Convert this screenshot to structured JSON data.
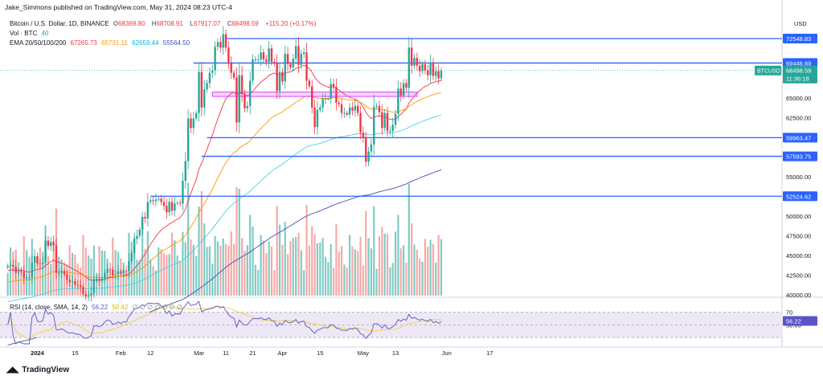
{
  "publisher_line": "Jake_Simmons published on TradingView.com, May 31, 2024 08:23 UTC-4",
  "footer_brand": "TradingView",
  "legend": {
    "symbol": "Bitcoin / U.S. Dollar, 1D, BINANCE",
    "open_label": "O",
    "open": "68369.80",
    "high_label": "H",
    "high": "68708.91",
    "low_label": "L",
    "low": "67917.07",
    "close_label": "C",
    "close": "68498.59",
    "change": "+115.20 (+0.17%)",
    "vol_label": "Vol · BTC",
    "vol": "40",
    "ema_label": "EMA 20/50/100/200",
    "ema20": "67265.73",
    "ema50": "65731.11",
    "ema100": "62659.44",
    "ema200": "55564.50",
    "rsi_label": "RSI (14, close, SMA, 14, 2)",
    "rsi": "56.22",
    "rsi_ma": "50.42",
    "rsi_na": "∅ ∅ ∅ ∅ ∅ ∅ ∅"
  },
  "colors": {
    "up": "#26a69a",
    "down": "#f23645",
    "vol_up": "#80cbc4",
    "vol_down": "#f7a9a7",
    "ema20": "#f23645",
    "ema50": "#ff9800",
    "ema100": "#4dd0e1",
    "ema200": "#3f51b5",
    "level": "#2962ff",
    "zone": "#e040fb",
    "rsi": "#5b54c7",
    "rsi_ma": "#f5d03a",
    "rsi_band": "#ede7f6",
    "price_tag": "#26a69a"
  },
  "chart_data": {
    "type": "candlestick",
    "price_axis_label": "USD",
    "symbol_tag": "BTCUSD",
    "last_price": 68498.59,
    "last_price_label": "68498.59",
    "countdown": "11:36:18",
    "price_ticks": [
      {
        "v": 65000,
        "t": "65000.00"
      },
      {
        "v": 62500,
        "t": "62500.00"
      },
      {
        "v": 55000,
        "t": "55000.00"
      },
      {
        "v": 50000,
        "t": "50000.00"
      },
      {
        "v": 47500,
        "t": "47500.00"
      },
      {
        "v": 45000,
        "t": "45000.00"
      },
      {
        "v": 42500,
        "t": "42500.00"
      },
      {
        "v": 40000,
        "t": "40000.00"
      }
    ],
    "levels": [
      {
        "v": 72548.83,
        "t": "72548.83",
        "x0": "2024-03-11"
      },
      {
        "v": 69446.69,
        "t": "69446.69",
        "x0": "2024-02-28"
      },
      {
        "v": 59963.47,
        "t": "59963.47",
        "x0": "2024-03-04"
      },
      {
        "v": 57593.75,
        "t": "57593.75",
        "x0": "2024-03-02"
      },
      {
        "v": 52524.62,
        "t": "52524.62",
        "x0": "2024-02-12"
      }
    ],
    "zone": {
      "x0": "2024-03-06",
      "x1": "2024-05-21",
      "y0": 65200,
      "y1": 65750
    },
    "time_labels": [
      {
        "d": "2024-01-01",
        "t": "2024"
      },
      {
        "d": "2024-01-15",
        "t": "15"
      },
      {
        "d": "2024-02-01",
        "t": "Feb"
      },
      {
        "d": "2024-02-12",
        "t": "12"
      },
      {
        "d": "2024-03-01",
        "t": "Mar"
      },
      {
        "d": "2024-03-11",
        "t": "11"
      },
      {
        "d": "2024-03-21",
        "t": "21"
      },
      {
        "d": "2024-04-01",
        "t": "Apr"
      },
      {
        "d": "2024-04-15",
        "t": "15"
      },
      {
        "d": "2024-05-01",
        "t": "May"
      },
      {
        "d": "2024-05-13",
        "t": "13"
      },
      {
        "d": "2024-06-01",
        "t": "Jun"
      },
      {
        "d": "2024-06-17",
        "t": "17"
      }
    ],
    "start_date": "2023-12-21",
    "closes": [
      43700,
      43800,
      43600,
      42800,
      43000,
      42900,
      42100,
      42200,
      42200,
      44100,
      44900,
      44000,
      43900,
      44100,
      46900,
      46200,
      46700,
      46300,
      42800,
      42800,
      43000,
      42600,
      41900,
      41600,
      41700,
      41300,
      41200,
      41000,
      40100,
      39800,
      39900,
      40200,
      42000,
      42000,
      41800,
      42100,
      42800,
      43300,
      43200,
      42500,
      42600,
      43000,
      42700,
      43100,
      43000,
      44300,
      45300,
      47100,
      47500,
      48300,
      49900,
      49700,
      51800,
      52000,
      51900,
      52100,
      52200,
      51800,
      51300,
      50500,
      51800,
      50700,
      51600,
      51700,
      51600,
      54500,
      57000,
      62400,
      61200,
      62400,
      63100,
      68300,
      63800,
      66100,
      66900,
      68200,
      68500,
      71500,
      72100,
      71400,
      73100,
      71400,
      69400,
      68200,
      67600,
      61900,
      67900,
      65500,
      63700,
      64000,
      67200,
      69900,
      69900,
      69900,
      70800,
      69900,
      69600,
      71300,
      69600,
      69400,
      65900,
      68300,
      67100,
      70600,
      69300,
      68900,
      70000,
      71600,
      69200,
      70600,
      70800,
      67200,
      66500,
      63800,
      61300,
      63500,
      63800,
      64900,
      64900,
      64900,
      66800,
      66400,
      64400,
      64200,
      63100,
      63100,
      62900,
      63800,
      63400,
      64000,
      63100,
      60600,
      60000,
      56900,
      58200,
      59100,
      63900,
      64000,
      63200,
      61200,
      63100,
      60800,
      60800,
      61600,
      63000,
      66200,
      65300,
      66900,
      66300,
      71400,
      69100,
      70100,
      69100,
      68400,
      69300,
      68500,
      67900,
      69500,
      67800,
      68400,
      67500,
      68500
    ],
    "volume_scale": [
      0,
      40000
    ],
    "rsi_range": [
      20,
      90
    ],
    "rsi_ticks": [
      {
        "v": 70,
        "t": "70"
      },
      {
        "v": 50,
        "t": "50.00"
      }
    ],
    "rsi_band": [
      30,
      70
    ]
  }
}
